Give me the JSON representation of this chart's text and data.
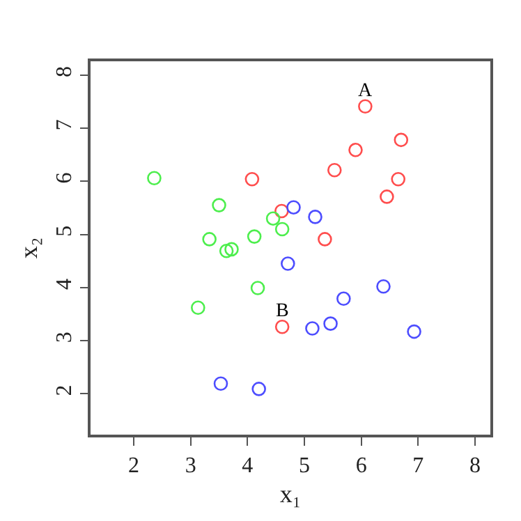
{
  "chart_data": {
    "type": "scatter",
    "xlabel": "x₁",
    "ylabel": "x₂",
    "xlim": [
      1.24,
      8.27
    ],
    "ylim": [
      1.23,
      8.26
    ],
    "xticks": [
      2,
      3,
      4,
      5,
      6,
      7,
      8
    ],
    "yticks": [
      2,
      3,
      4,
      5,
      6,
      7,
      8
    ],
    "marker": "circle",
    "series": [
      {
        "color": "#ff4d4d",
        "x": [
          6.07,
          4.08,
          6.7,
          5.9,
          5.53,
          6.65,
          6.45,
          4.6,
          5.36,
          4.61
        ],
        "values": [
          7.41,
          6.04,
          6.78,
          6.59,
          6.21,
          6.04,
          5.71,
          5.44,
          4.91,
          3.26
        ]
      },
      {
        "color": "#4d4dff",
        "x": [
          4.81,
          5.19,
          4.71,
          6.39,
          5.69,
          5.46,
          5.14,
          6.93,
          3.53,
          4.2
        ],
        "values": [
          5.51,
          5.33,
          4.45,
          4.02,
          3.79,
          3.32,
          3.23,
          3.17,
          2.19,
          2.09
        ]
      },
      {
        "color": "#4dee4d",
        "x": [
          2.36,
          3.5,
          4.45,
          4.61,
          4.12,
          3.33,
          3.63,
          3.72,
          4.18,
          3.13
        ],
        "values": [
          6.06,
          5.55,
          5.3,
          5.1,
          4.96,
          4.91,
          4.69,
          4.72,
          3.99,
          3.62
        ]
      }
    ],
    "annotations": [
      {
        "text": "A",
        "x": 6.07,
        "y": 7.41
      },
      {
        "text": "B",
        "x": 4.61,
        "y": 3.26
      }
    ]
  }
}
